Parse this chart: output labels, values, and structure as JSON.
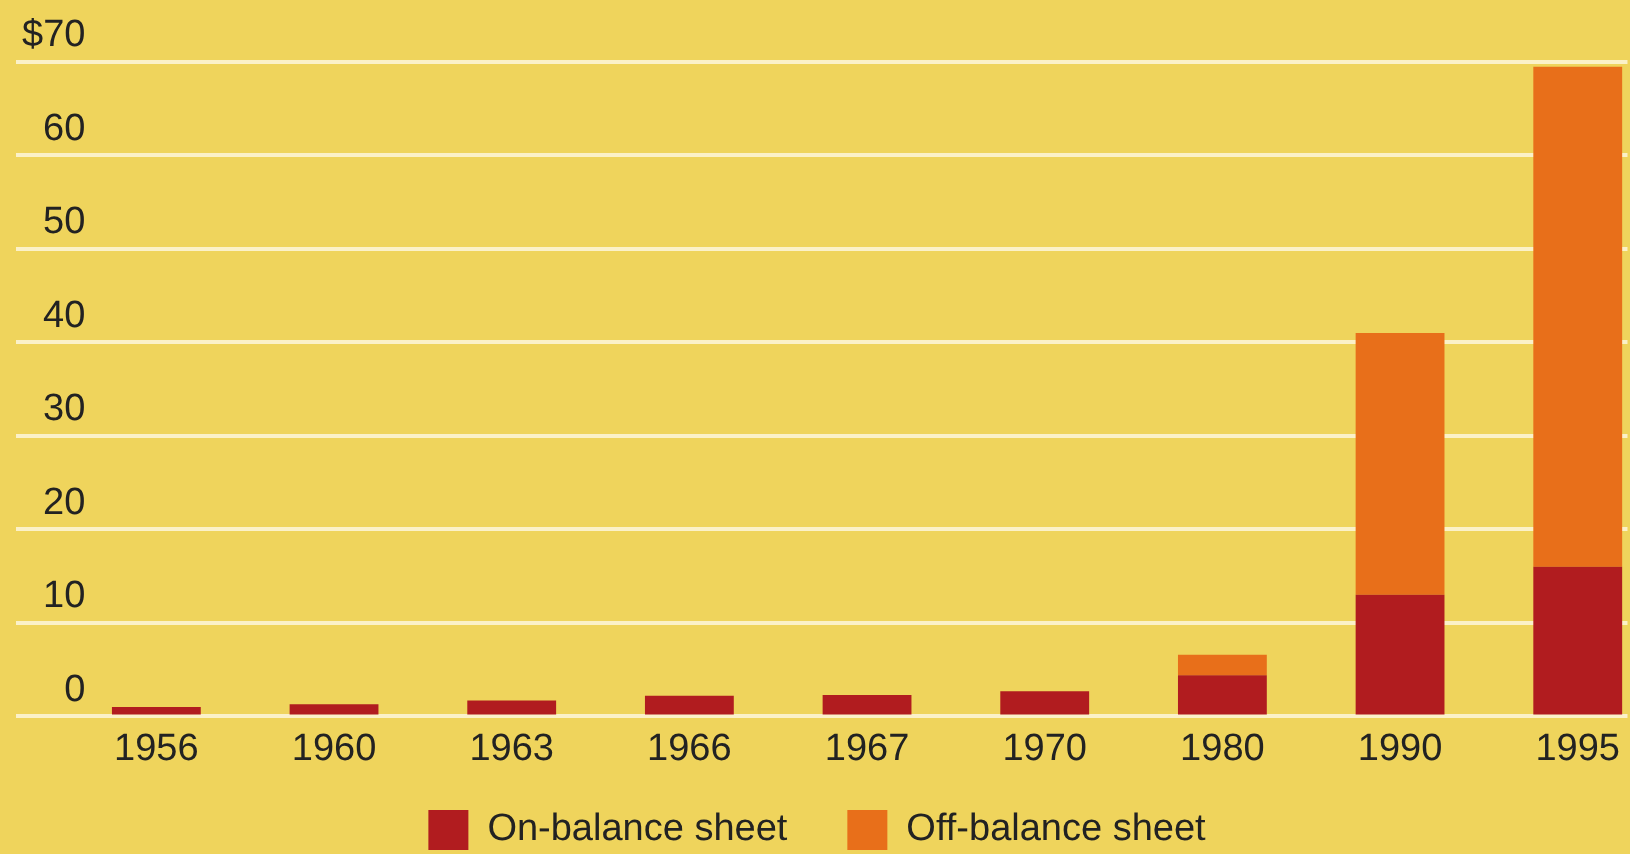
{
  "chart_data": {
    "type": "bar",
    "stacked": true,
    "categories": [
      "1956",
      "1960",
      "1963",
      "1966",
      "1967",
      "1970",
      "1980",
      "1990",
      "1995"
    ],
    "series": [
      {
        "name": "On-balance sheet",
        "color": "#b11c1f",
        "values": [
          1,
          1.3,
          1.7,
          2.2,
          2.3,
          2.7,
          4.4,
          13,
          16
        ]
      },
      {
        "name": "Off-balance sheet",
        "color": "#e86f1a",
        "values": [
          0,
          0,
          0,
          0,
          0,
          0,
          2.2,
          28,
          53.5
        ]
      }
    ],
    "ylim": [
      0,
      70
    ],
    "yticks": [
      0,
      10,
      20,
      30,
      40,
      50,
      60,
      {
        "value": 70,
        "label": "$70"
      }
    ],
    "grid": "y",
    "legend": "bottom"
  }
}
